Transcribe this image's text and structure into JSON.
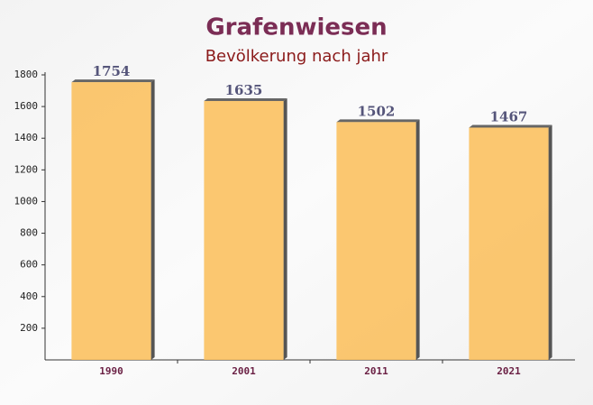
{
  "chart_data": {
    "type": "bar",
    "title": "Grafenwiesen",
    "subtitle": "Bevölkerung nach jahr",
    "categories": [
      "1990",
      "2001",
      "2011",
      "2021"
    ],
    "values": [
      1754,
      1635,
      1502,
      1467
    ],
    "color": "#fbc160",
    "ylim": [
      0,
      1800
    ],
    "yticks": [
      200,
      400,
      600,
      800,
      1000,
      1200,
      1400,
      1600,
      1800
    ],
    "grid": false
  }
}
